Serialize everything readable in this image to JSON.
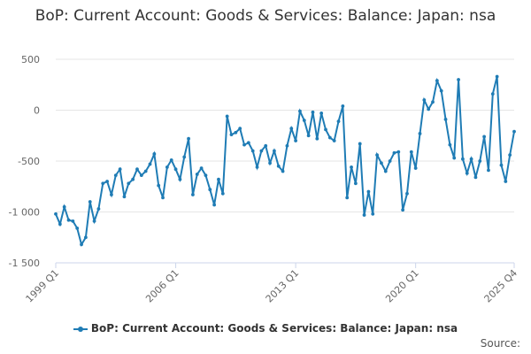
{
  "chart_data": {
    "type": "line",
    "title": "BoP: Current Account: Goods & Services: Balance: Japan: nsa",
    "x_start": "1999 Q1",
    "x_end": "2025 Q4",
    "x_tick_labels": [
      "1999 Q1",
      "2006 Q1",
      "2013 Q1",
      "2020 Q1",
      "2025 Q4"
    ],
    "y_tick_labels": [
      "500",
      "0",
      "-500",
      "-1 000",
      "-1 500"
    ],
    "ylim": [
      -1500,
      500
    ],
    "grid": "horizontal",
    "legend_position": "bottom",
    "line_color": "#1f7cb5",
    "series": [
      {
        "name": "BoP: Current Account: Goods & Services: Balance: Japan: nsa",
        "values": [
          -1020,
          -1120,
          -950,
          -1080,
          -1090,
          -1160,
          -1320,
          -1250,
          -900,
          -1090,
          -970,
          -720,
          -700,
          -830,
          -640,
          -580,
          -850,
          -720,
          -680,
          -580,
          -640,
          -600,
          -530,
          -430,
          -740,
          -860,
          -560,
          -490,
          -580,
          -680,
          -460,
          -280,
          -830,
          -630,
          -570,
          -640,
          -780,
          -930,
          -680,
          -820,
          -60,
          -240,
          -220,
          -180,
          -340,
          -320,
          -400,
          -560,
          -400,
          -350,
          -520,
          -400,
          -550,
          -600,
          -350,
          -180,
          -300,
          -10,
          -100,
          -250,
          -20,
          -280,
          -30,
          -190,
          -270,
          -300,
          -110,
          40,
          -860,
          -560,
          -720,
          -330,
          -1030,
          -800,
          -1020,
          -440,
          -520,
          -600,
          -500,
          -420,
          -410,
          -980,
          -820,
          -410,
          -570,
          -230,
          100,
          10,
          80,
          290,
          190,
          -90,
          -340,
          -470,
          300,
          -480,
          -620,
          -480,
          -660,
          -500,
          -260,
          -590,
          160,
          330,
          -540,
          -700,
          -440,
          -210
        ]
      }
    ]
  },
  "legend": {
    "label": "BoP: Current Account: Goods & Services: Balance: Japan: nsa"
  },
  "source_label": "Source:"
}
